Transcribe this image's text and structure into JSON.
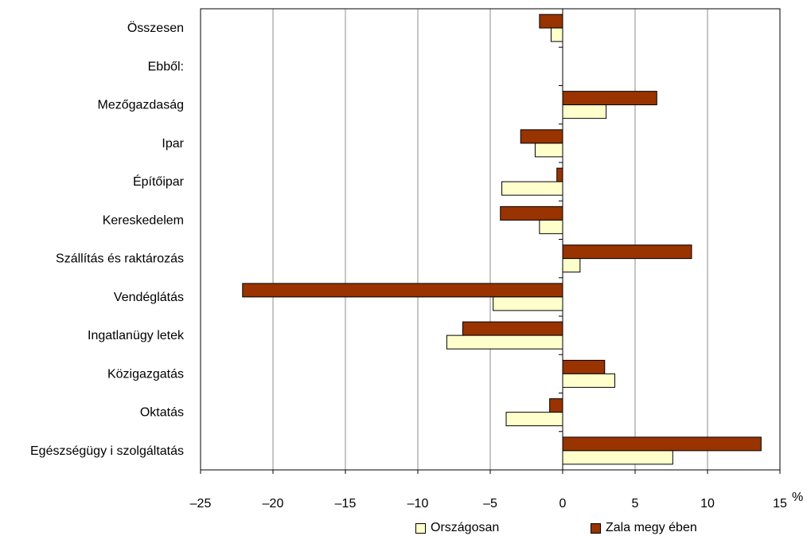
{
  "chart_data": {
    "type": "bar",
    "orientation": "horizontal",
    "title": "",
    "xlabel": "",
    "ylabel": "",
    "unit": "%",
    "xlim": [
      -25,
      15
    ],
    "xticks": [
      -25,
      -20,
      -15,
      -10,
      -5,
      0,
      5,
      10,
      15
    ],
    "xtick_labels": [
      "–25",
      "–20",
      "–15",
      "–10",
      "–5",
      "0",
      "5",
      "10",
      "15"
    ],
    "grid": "vertical",
    "legend_position": "bottom",
    "categories": [
      "Összesen",
      "Ebből:",
      "Mezőgazdaság",
      "Ipar",
      "Építőipar",
      "Kereskedelem",
      "Szállítás és raktározás",
      "Vendéglátás",
      "Ingatlanügy letek",
      "Közigazgatás",
      "Oktatás",
      "Egészségügy i szolgáltatás"
    ],
    "series": [
      {
        "name": "Zala megy ében",
        "color": "#993300",
        "values": [
          -1.6,
          null,
          6.5,
          -2.9,
          -0.4,
          -4.3,
          8.9,
          -22.1,
          -6.9,
          2.9,
          -0.9,
          13.7
        ]
      },
      {
        "name": "Országosan",
        "color": "#FFFFCC",
        "values": [
          -0.8,
          null,
          3.0,
          -1.9,
          -4.2,
          -1.6,
          1.2,
          -4.8,
          -8.0,
          3.6,
          -3.9,
          7.6
        ]
      }
    ]
  },
  "legend": {
    "orszagosan": "Országosan",
    "zala": "Zala megy ében"
  }
}
